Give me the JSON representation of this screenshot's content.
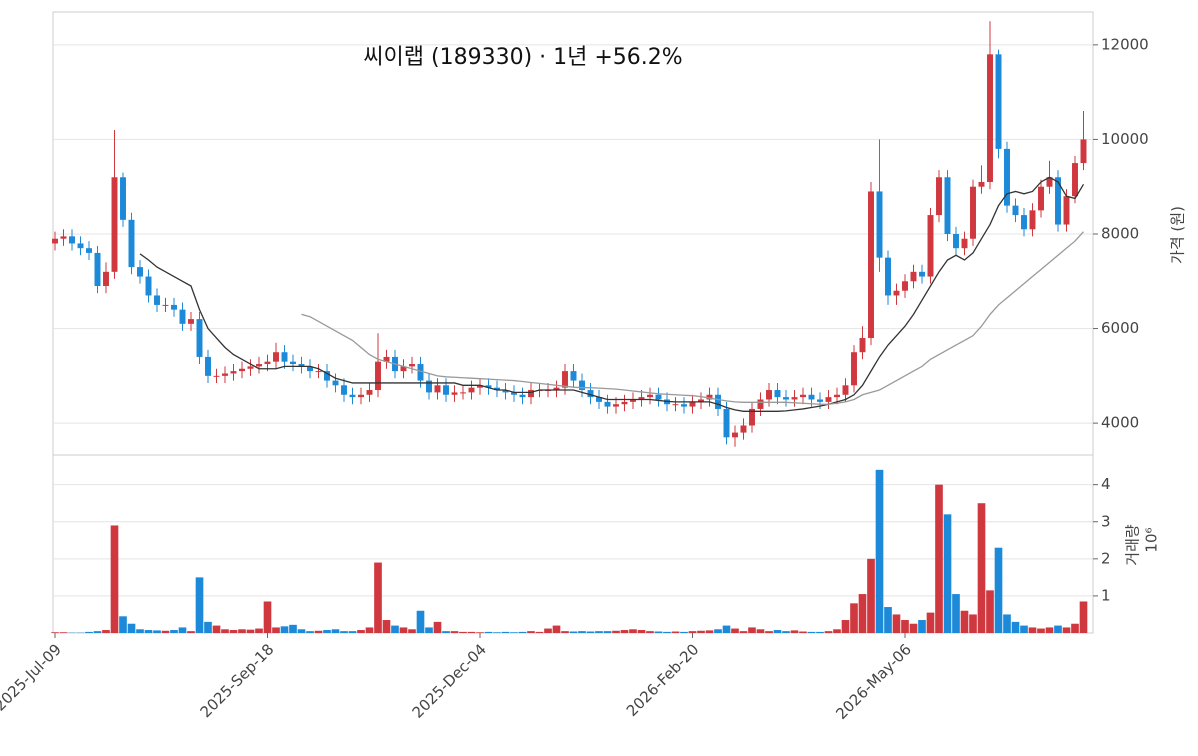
{
  "chart_data": {
    "type": "candlestick",
    "title": "씨이랩 (189330)  ·  1년 +56.2%",
    "ylabel": "가격 (원)",
    "categories": [
      "2025-Jul-09",
      null,
      null,
      null,
      null,
      null,
      null,
      null,
      null,
      null,
      null,
      null,
      null,
      null,
      null,
      null,
      null,
      null,
      null,
      null,
      null,
      null,
      null,
      null,
      null,
      "2025-Sep-18",
      null,
      null,
      null,
      null,
      null,
      null,
      null,
      null,
      null,
      null,
      null,
      null,
      null,
      null,
      null,
      null,
      null,
      null,
      null,
      null,
      null,
      null,
      null,
      null,
      "2025-Dec-04",
      null,
      null,
      null,
      null,
      null,
      null,
      null,
      null,
      null,
      null,
      null,
      null,
      null,
      null,
      null,
      null,
      null,
      null,
      null,
      null,
      null,
      null,
      null,
      null,
      "2026-Feb-20",
      null,
      null,
      null,
      null,
      null,
      null,
      null,
      null,
      null,
      null,
      null,
      null,
      null,
      null,
      null,
      null,
      null,
      null,
      null,
      null,
      null,
      null,
      null,
      null,
      "2026-May-06",
      null,
      null,
      null,
      null,
      null,
      null,
      null,
      null,
      null,
      null,
      null,
      null,
      null,
      null,
      null,
      null,
      null,
      null,
      null,
      null,
      null
    ],
    "open": [
      7800,
      7900,
      7950,
      7800,
      7700,
      7600,
      6900,
      7200,
      9200,
      8300,
      7300,
      7100,
      6700,
      6500,
      6500,
      6400,
      6100,
      6200,
      5400,
      5000,
      5000,
      5050,
      5100,
      5150,
      5200,
      5250,
      5300,
      5500,
      5300,
      5250,
      5200,
      5100,
      5100,
      4900,
      4800,
      4600,
      4550,
      4600,
      4700,
      5300,
      5400,
      5100,
      5200,
      5250,
      4900,
      4650,
      4800,
      4600,
      4650,
      4650,
      4750,
      4800,
      4750,
      4700,
      4650,
      4600,
      4550,
      4700,
      4700,
      4700,
      4750,
      5100,
      4900,
      4700,
      4550,
      4450,
      4350,
      4400,
      4450,
      4500,
      4550,
      4600,
      4500,
      4400,
      4400,
      4350,
      4450,
      4500,
      4600,
      4300,
      3700,
      3800,
      3950,
      4300,
      4500,
      4700,
      4550,
      4500,
      4550,
      4600,
      4500,
      4450,
      4550,
      4600,
      4800,
      5500,
      5800,
      8900,
      7500,
      6700,
      6800,
      7000,
      7200,
      7100,
      8400,
      9200,
      8000,
      7700,
      7900,
      9000,
      9100,
      11800,
      9800,
      8600,
      8400,
      8100,
      8500,
      9000,
      9200,
      8200,
      8800,
      9500
    ],
    "high": [
      8050,
      8100,
      8100,
      7950,
      7850,
      7750,
      7400,
      10200,
      9300,
      8450,
      7450,
      7250,
      6850,
      6650,
      6650,
      6550,
      6350,
      6350,
      5550,
      5150,
      5200,
      5250,
      5300,
      5350,
      5400,
      5450,
      5700,
      5650,
      5450,
      5400,
      5350,
      5250,
      5250,
      5050,
      4950,
      4750,
      4750,
      4850,
      5900,
      5550,
      5550,
      5350,
      5400,
      5400,
      5050,
      4950,
      4950,
      4800,
      4800,
      4900,
      4950,
      4950,
      4900,
      4850,
      4800,
      4750,
      4850,
      4850,
      4850,
      4900,
      5250,
      5250,
      5050,
      4850,
      4700,
      4600,
      4550,
      4600,
      4650,
      4700,
      4750,
      4750,
      4650,
      4550,
      4550,
      4600,
      4650,
      4750,
      4750,
      4450,
      3950,
      4100,
      4450,
      4650,
      4850,
      4850,
      4700,
      4700,
      4750,
      4750,
      4650,
      4700,
      4750,
      4950,
      5650,
      6050,
      9100,
      10000,
      7650,
      6950,
      7150,
      7350,
      7350,
      8550,
      9350,
      9350,
      8150,
      8050,
      9150,
      9450,
      12500,
      11900,
      9950,
      8750,
      8550,
      8650,
      9150,
      9550,
      9350,
      8950,
      9650,
      10600
    ],
    "low": [
      7650,
      7750,
      7650,
      7550,
      7450,
      6750,
      6750,
      7050,
      8150,
      7150,
      6950,
      6550,
      6350,
      6350,
      6250,
      5950,
      5950,
      5250,
      4850,
      4850,
      4850,
      4900,
      4950,
      5000,
      5050,
      5100,
      5150,
      5150,
      5100,
      5050,
      4950,
      4950,
      4750,
      4650,
      4450,
      4400,
      4400,
      4450,
      4550,
      5150,
      4950,
      4950,
      5050,
      4750,
      4500,
      4500,
      4450,
      4450,
      4500,
      4500,
      4600,
      4600,
      4550,
      4500,
      4450,
      4400,
      4400,
      4550,
      4550,
      4550,
      4600,
      4750,
      4550,
      4400,
      4300,
      4200,
      4200,
      4250,
      4300,
      4350,
      4400,
      4350,
      4250,
      4250,
      4200,
      4200,
      4300,
      4350,
      4150,
      3550,
      3500,
      3650,
      3800,
      4150,
      4350,
      4400,
      4350,
      4350,
      4400,
      4350,
      4300,
      4300,
      4400,
      4450,
      4650,
      5350,
      5650,
      7200,
      6500,
      6500,
      6650,
      6850,
      6950,
      6950,
      8250,
      7850,
      7550,
      7550,
      7750,
      8850,
      8950,
      9600,
      8450,
      8250,
      7950,
      7950,
      8350,
      8850,
      8050,
      8050,
      8650,
      9350
    ],
    "close": [
      7900,
      7950,
      7800,
      7700,
      7600,
      6900,
      7200,
      9200,
      8300,
      7300,
      7100,
      6700,
      6500,
      6500,
      6400,
      6100,
      6200,
      5400,
      5000,
      5000,
      5050,
      5100,
      5150,
      5200,
      5250,
      5300,
      5500,
      5300,
      5250,
      5200,
      5100,
      5100,
      4900,
      4800,
      4600,
      4550,
      4600,
      4700,
      5300,
      5400,
      5100,
      5200,
      5250,
      4900,
      4650,
      4800,
      4600,
      4650,
      4650,
      4750,
      4800,
      4750,
      4700,
      4650,
      4600,
      4550,
      4700,
      4700,
      4700,
      4750,
      5100,
      4900,
      4700,
      4550,
      4450,
      4350,
      4400,
      4450,
      4500,
      4550,
      4600,
      4500,
      4400,
      4400,
      4350,
      4450,
      4500,
      4600,
      4300,
      3700,
      3800,
      3950,
      4300,
      4500,
      4700,
      4550,
      4500,
      4550,
      4600,
      4500,
      4450,
      4550,
      4600,
      4800,
      5500,
      5800,
      8900,
      7500,
      6700,
      6800,
      7000,
      7200,
      7100,
      8400,
      9200,
      8000,
      7700,
      7900,
      9000,
      9100,
      11800,
      9800,
      8600,
      8400,
      8100,
      8500,
      9000,
      9200,
      8200,
      8800,
      9500,
      10000
    ],
    "up_color": "#d0383f",
    "down_color": "#1c8ad8",
    "ylim": [
      3326,
      12695
    ],
    "yticks": [
      4000,
      6000,
      8000,
      10000,
      12000
    ],
    "grid": true,
    "series": [
      {
        "color": "#333333",
        "values": [
          null,
          null,
          null,
          null,
          null,
          null,
          null,
          null,
          null,
          null,
          7580,
          7450,
          7300,
          7200,
          7100,
          7000,
          6900,
          6400,
          6000,
          5800,
          5600,
          5450,
          5350,
          5250,
          5150,
          5150,
          5150,
          5200,
          5200,
          5200,
          5200,
          5150,
          5050,
          4950,
          4900,
          4850,
          4850,
          4850,
          4850,
          4850,
          4850,
          4850,
          4850,
          4850,
          4850,
          4850,
          4850,
          4850,
          4800,
          4800,
          4800,
          4750,
          4700,
          4700,
          4650,
          4650,
          4650,
          4700,
          4700,
          4700,
          4700,
          4700,
          4650,
          4600,
          4550,
          4500,
          4500,
          4500,
          4500,
          4500,
          4500,
          4480,
          4460,
          4450,
          4450,
          4450,
          4450,
          4450,
          4400,
          4330,
          4280,
          4250,
          4250,
          4250,
          4250,
          4250,
          4260,
          4280,
          4300,
          4330,
          4360,
          4400,
          4450,
          4500,
          4600,
          4800,
          5100,
          5400,
          5650,
          5850,
          6050,
          6300,
          6600,
          6900,
          7200,
          7450,
          7550,
          7450,
          7600,
          7900,
          8200,
          8600,
          8850,
          8900,
          8850,
          8900,
          9100,
          9200,
          9100,
          8800,
          8750,
          9050
        ]
      },
      {
        "color": "#999999",
        "values": [
          null,
          null,
          null,
          null,
          null,
          null,
          null,
          null,
          null,
          null,
          null,
          null,
          null,
          null,
          null,
          null,
          null,
          null,
          null,
          null,
          null,
          null,
          null,
          null,
          null,
          null,
          null,
          null,
          null,
          6300,
          6250,
          6150,
          6050,
          5950,
          5850,
          5750,
          5600,
          5450,
          5350,
          5300,
          5250,
          5200,
          5150,
          5100,
          5050,
          5000,
          4980,
          4970,
          4960,
          4950,
          4940,
          4930,
          4920,
          4910,
          4900,
          4880,
          4860,
          4840,
          4820,
          4800,
          4780,
          4760,
          4750,
          4750,
          4740,
          4730,
          4720,
          4700,
          4680,
          4660,
          4640,
          4620,
          4610,
          4600,
          4590,
          4580,
          4560,
          4530,
          4500,
          4470,
          4450,
          4440,
          4440,
          4440,
          4440,
          4440,
          4440,
          4430,
          4420,
          4410,
          4400,
          4400,
          4420,
          4450,
          4500,
          4600,
          4650,
          4700,
          4800,
          4900,
          5000,
          5100,
          5200,
          5350,
          5450,
          5550,
          5650,
          5750,
          5850,
          6050,
          6300,
          6500,
          6650,
          6800,
          6950,
          7100,
          7250,
          7400,
          7550,
          7700,
          7850,
          8050
        ]
      }
    ],
    "volume": {
      "ylabel": "거래량",
      "offset_label": "10⁶",
      "ylim": [
        0,
        4.8
      ],
      "yticks": [
        1,
        2,
        3,
        4
      ],
      "values": [
        0.02,
        0.02,
        0.01,
        0.01,
        0.03,
        0.05,
        0.08,
        2.9,
        0.45,
        0.25,
        0.1,
        0.08,
        0.07,
        0.06,
        0.08,
        0.15,
        0.05,
        1.5,
        0.3,
        0.2,
        0.1,
        0.08,
        0.1,
        0.09,
        0.12,
        0.85,
        0.15,
        0.18,
        0.22,
        0.1,
        0.05,
        0.06,
        0.08,
        0.1,
        0.05,
        0.05,
        0.08,
        0.15,
        1.9,
        0.35,
        0.2,
        0.15,
        0.1,
        0.6,
        0.15,
        0.3,
        0.05,
        0.05,
        0.03,
        0.03,
        0.02,
        0.03,
        0.02,
        0.03,
        0.02,
        0.03,
        0.05,
        0.03,
        0.12,
        0.2,
        0.05,
        0.04,
        0.05,
        0.04,
        0.05,
        0.05,
        0.06,
        0.08,
        0.1,
        0.08,
        0.05,
        0.04,
        0.03,
        0.04,
        0.03,
        0.05,
        0.06,
        0.07,
        0.1,
        0.2,
        0.12,
        0.05,
        0.15,
        0.1,
        0.05,
        0.08,
        0.05,
        0.07,
        0.04,
        0.03,
        0.03,
        0.05,
        0.1,
        0.35,
        0.8,
        1.05,
        2.0,
        4.4,
        0.7,
        0.5,
        0.35,
        0.25,
        0.35,
        0.55,
        4.0,
        3.2,
        1.05,
        0.6,
        0.5,
        3.5,
        1.15,
        2.3,
        0.5,
        0.3,
        0.2,
        0.15,
        0.12,
        0.15,
        0.2,
        0.15,
        0.25,
        0.85
      ]
    }
  }
}
